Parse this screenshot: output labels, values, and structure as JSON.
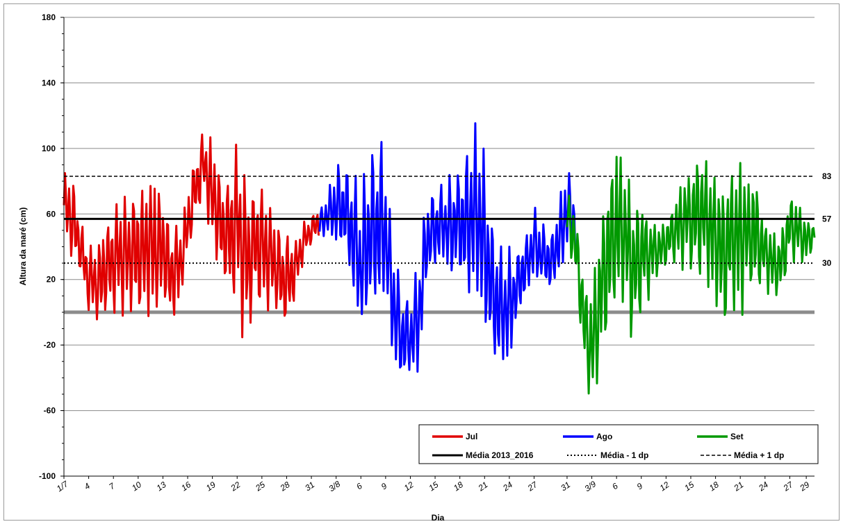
{
  "chart_data": {
    "type": "line",
    "title": "",
    "xlabel": "Dia",
    "ylabel": "Altura da maré (cm)",
    "ylim": [
      -100,
      180
    ],
    "yticks": [
      -100,
      -60,
      -20,
      20,
      60,
      100,
      140,
      180
    ],
    "grid": true,
    "legend_position": "bottom-right",
    "x_tick_labels": [
      "1/7",
      "4",
      "7",
      "10",
      "13",
      "16",
      "19",
      "22",
      "25",
      "28",
      "31",
      "3/8",
      "6",
      "9",
      "12",
      "15",
      "18",
      "21",
      "24",
      "27",
      "31",
      "3/9",
      "6",
      "9",
      "12",
      "15",
      "18",
      "21",
      "24",
      "27",
      "29"
    ],
    "x_tick_days": [
      0,
      3,
      6,
      9,
      12,
      15,
      18,
      21,
      24,
      27,
      30,
      33,
      36,
      39,
      42,
      45,
      48,
      51,
      54,
      57,
      61,
      64,
      67,
      70,
      73,
      76,
      79,
      82,
      85,
      88,
      90
    ],
    "x_range_days": [
      0,
      91
    ],
    "series": [
      {
        "name": "Jul",
        "color": "#e00000",
        "day_start": 0,
        "day_end": 31,
        "envelope": [
          [
            0,
            50,
            85
          ],
          [
            1,
            25,
            88
          ],
          [
            2,
            20,
            60
          ],
          [
            3,
            -5,
            42
          ],
          [
            4,
            -10,
            45
          ],
          [
            5,
            -8,
            60
          ],
          [
            6,
            -5,
            70
          ],
          [
            7,
            -5,
            78
          ],
          [
            8,
            -5,
            75
          ],
          [
            9,
            -8,
            78
          ],
          [
            10,
            -5,
            85
          ],
          [
            11,
            -5,
            90
          ],
          [
            12,
            0,
            72
          ],
          [
            13,
            -10,
            60
          ],
          [
            14,
            0,
            55
          ],
          [
            15,
            30,
            75
          ],
          [
            16,
            55,
            100
          ],
          [
            17,
            70,
            115
          ],
          [
            18,
            35,
            105
          ],
          [
            19,
            15,
            90
          ],
          [
            20,
            5,
            85
          ],
          [
            21,
            5,
            105
          ],
          [
            22,
            -30,
            90
          ],
          [
            23,
            0,
            80
          ],
          [
            24,
            0,
            85
          ],
          [
            25,
            0,
            65
          ],
          [
            26,
            -5,
            55
          ],
          [
            27,
            -8,
            50
          ],
          [
            28,
            5,
            45
          ],
          [
            29,
            30,
            55
          ],
          [
            30,
            40,
            62
          ],
          [
            31,
            45,
            65
          ]
        ]
      },
      {
        "name": "Ago",
        "color": "#0000ff",
        "day_start": 31,
        "day_end": 62,
        "envelope": [
          [
            31,
            45,
            65
          ],
          [
            32,
            45,
            72
          ],
          [
            33,
            35,
            95
          ],
          [
            34,
            30,
            92
          ],
          [
            35,
            5,
            90
          ],
          [
            36,
            -22,
            75
          ],
          [
            37,
            -10,
            100
          ],
          [
            38,
            -5,
            112
          ],
          [
            39,
            0,
            100
          ],
          [
            40,
            -35,
            40
          ],
          [
            41,
            -50,
            20
          ],
          [
            42,
            -45,
            10
          ],
          [
            43,
            -40,
            35
          ],
          [
            44,
            15,
            75
          ],
          [
            45,
            25,
            75
          ],
          [
            46,
            25,
            80
          ],
          [
            47,
            20,
            85
          ],
          [
            48,
            15,
            95
          ],
          [
            49,
            5,
            112
          ],
          [
            50,
            0,
            117
          ],
          [
            51,
            -20,
            100
          ],
          [
            52,
            -30,
            60
          ],
          [
            53,
            -45,
            50
          ],
          [
            54,
            -35,
            40
          ],
          [
            55,
            -5,
            40
          ],
          [
            56,
            5,
            50
          ],
          [
            57,
            15,
            65
          ],
          [
            58,
            15,
            55
          ],
          [
            59,
            10,
            50
          ],
          [
            60,
            15,
            70
          ],
          [
            61,
            35,
            92
          ],
          [
            62,
            25,
            80
          ]
        ]
      },
      {
        "name": "Set",
        "color": "#009900",
        "day_start": 61,
        "day_end": 91,
        "envelope": [
          [
            61,
            40,
            80
          ],
          [
            62,
            20,
            65
          ],
          [
            63,
            -35,
            30
          ],
          [
            64,
            -62,
            15
          ],
          [
            65,
            -35,
            60
          ],
          [
            66,
            -20,
            85
          ],
          [
            67,
            0,
            108
          ],
          [
            68,
            0,
            95
          ],
          [
            69,
            -32,
            80
          ],
          [
            70,
            0,
            70
          ],
          [
            71,
            5,
            65
          ],
          [
            72,
            20,
            55
          ],
          [
            73,
            25,
            60
          ],
          [
            74,
            30,
            70
          ],
          [
            75,
            20,
            88
          ],
          [
            76,
            25,
            90
          ],
          [
            77,
            20,
            105
          ],
          [
            78,
            10,
            100
          ],
          [
            79,
            0,
            90
          ],
          [
            80,
            -10,
            80
          ],
          [
            81,
            -5,
            95
          ],
          [
            82,
            -10,
            100
          ],
          [
            83,
            10,
            90
          ],
          [
            84,
            5,
            88
          ],
          [
            85,
            15,
            60
          ],
          [
            86,
            5,
            50
          ],
          [
            87,
            10,
            55
          ],
          [
            88,
            30,
            75
          ],
          [
            89,
            30,
            70
          ],
          [
            90,
            25,
            60
          ],
          [
            91,
            40,
            55
          ]
        ]
      },
      {
        "name": "Média 2013_2016",
        "color": "#000000",
        "style": "solid",
        "value": 57
      },
      {
        "name": "Média - 1 dp",
        "color": "#000000",
        "style": "dotted",
        "value": 30
      },
      {
        "name": "Média + 1 dp",
        "color": "#000000",
        "style": "dashed",
        "value": 83
      }
    ],
    "zero_line": {
      "value": 0,
      "color": "#8c8c8c"
    },
    "reference_labels": [
      "83",
      "57",
      "30"
    ]
  }
}
